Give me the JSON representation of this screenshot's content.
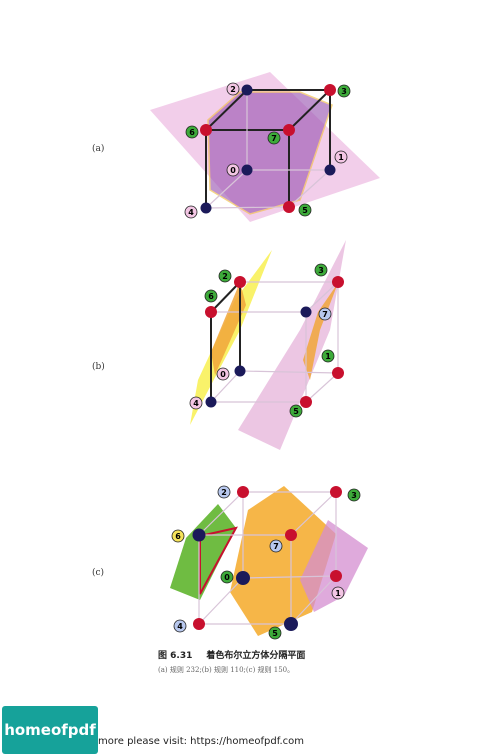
{
  "panels": [
    {
      "label": "(a)",
      "nodes": [
        {
          "num": "0",
          "ring": "#e89ccf",
          "dot": "#1b1a5a"
        },
        {
          "num": "1",
          "ring": "#e89ccf",
          "dot": "#1b1a5a"
        },
        {
          "num": "2",
          "ring": "#e89ccf",
          "dot": "#1b1a5a"
        },
        {
          "num": "3",
          "ring": "#3daa3a",
          "dot": "#c8102e"
        },
        {
          "num": "4",
          "ring": "#e89ccf",
          "dot": "#1b1a5a"
        },
        {
          "num": "5",
          "ring": "#3daa3a",
          "dot": "#c8102e"
        },
        {
          "num": "6",
          "ring": "#3daa3a",
          "dot": "#c8102e"
        },
        {
          "num": "7",
          "ring": "#3daa3a",
          "dot": "#c8102e"
        }
      ]
    },
    {
      "label": "(b)",
      "nodes": [
        {
          "num": "0",
          "ring": "#e89ccf",
          "dot": "#1b1a5a"
        },
        {
          "num": "1",
          "ring": "#3daa3a",
          "dot": "#c8102e"
        },
        {
          "num": "2",
          "ring": "#3daa3a",
          "dot": "#c8102e"
        },
        {
          "num": "3",
          "ring": "#3daa3a",
          "dot": "#c8102e"
        },
        {
          "num": "4",
          "ring": "#e89ccf",
          "dot": "#1b1a5a"
        },
        {
          "num": "5",
          "ring": "#3daa3a",
          "dot": "#c8102e"
        },
        {
          "num": "6",
          "ring": "#3daa3a",
          "dot": "#c8102e"
        },
        {
          "num": "7",
          "ring": "#b8c8ee",
          "dot": "#1b1a5a"
        }
      ]
    },
    {
      "label": "(c)",
      "nodes": [
        {
          "num": "0",
          "ring": "#3daa3a",
          "dot": "#1b1a5a"
        },
        {
          "num": "1",
          "ring": "#e89ccf",
          "dot": "#c8102e"
        },
        {
          "num": "2",
          "ring": "#b8c8ee",
          "dot": "#c8102e"
        },
        {
          "num": "3",
          "ring": "#3daa3a",
          "dot": "#c8102e"
        },
        {
          "num": "4",
          "ring": "#b8c8ee",
          "dot": "#c8102e"
        },
        {
          "num": "5",
          "ring": "#3daa3a",
          "dot": "#1b1a5a"
        },
        {
          "num": "6",
          "ring": "#f5e25a",
          "dot": "#1b1a5a"
        },
        {
          "num": "7",
          "ring": "#b8c8ee",
          "dot": "#c8102e"
        }
      ]
    }
  ],
  "caption": {
    "figure_number": "图 6.31",
    "title": "着色布尔立方体分隔平面",
    "sub": "(a) 规则 232;(b) 规则 110;(c) 规则 150。"
  },
  "footer": {
    "logo_text": "homeofpdf",
    "text": "more please visit: https://homeofpdf.com"
  }
}
